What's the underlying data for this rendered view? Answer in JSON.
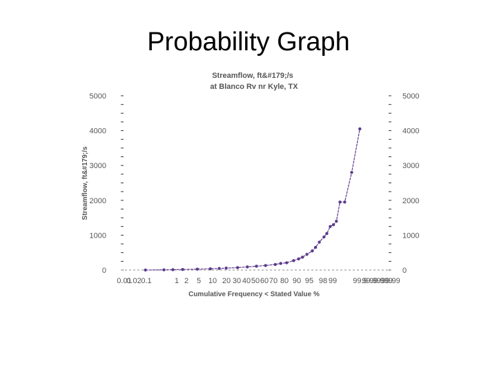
{
  "slide": {
    "title": "Probability Graph"
  },
  "chart_data": {
    "type": "line",
    "title": "Streamflow, ft&#179;/s",
    "subtitle": "at Blanco Rv nr Kyle, TX",
    "xlabel": "Cumulative Frequency < Stated Value %",
    "ylabel": "Streamflow, ft&#179;/s",
    "ylim": [
      0,
      5000
    ],
    "y_ticks": [
      "0",
      "1000",
      "2000",
      "3000",
      "4000",
      "5000"
    ],
    "x_ticks": [
      "0.01",
      "0.02",
      "0.1",
      "1",
      "2",
      "5",
      "10",
      "20",
      "30",
      "40",
      "50",
      "60",
      "70",
      "80",
      "90",
      "95",
      "98",
      "99",
      "99.9",
      "99.99",
      "99.999",
      "99.99"
    ],
    "x_scale": "normal probability",
    "right_axis": true,
    "colors": {
      "series": "#5b3a8c"
    },
    "series": [
      {
        "points": [
          [
            0.1,
            0
          ],
          [
            0.5,
            5
          ],
          [
            1,
            10
          ],
          [
            2,
            15
          ],
          [
            5,
            25
          ],
          [
            10,
            35
          ],
          [
            15,
            45
          ],
          [
            20,
            55
          ],
          [
            30,
            70
          ],
          [
            40,
            90
          ],
          [
            50,
            110
          ],
          [
            60,
            130
          ],
          [
            70,
            160
          ],
          [
            75,
            190
          ],
          [
            80,
            210
          ],
          [
            85,
            270
          ],
          [
            88,
            320
          ],
          [
            90,
            370
          ],
          [
            92,
            450
          ],
          [
            94,
            550
          ],
          [
            95,
            650
          ],
          [
            96,
            800
          ],
          [
            97,
            950
          ],
          [
            97.5,
            1050
          ],
          [
            98,
            1250
          ],
          [
            98.4,
            1300
          ],
          [
            98.7,
            1400
          ],
          [
            99,
            1950
          ],
          [
            99.3,
            1950
          ],
          [
            99.6,
            2800
          ],
          [
            99.8,
            4050
          ]
        ]
      }
    ]
  }
}
